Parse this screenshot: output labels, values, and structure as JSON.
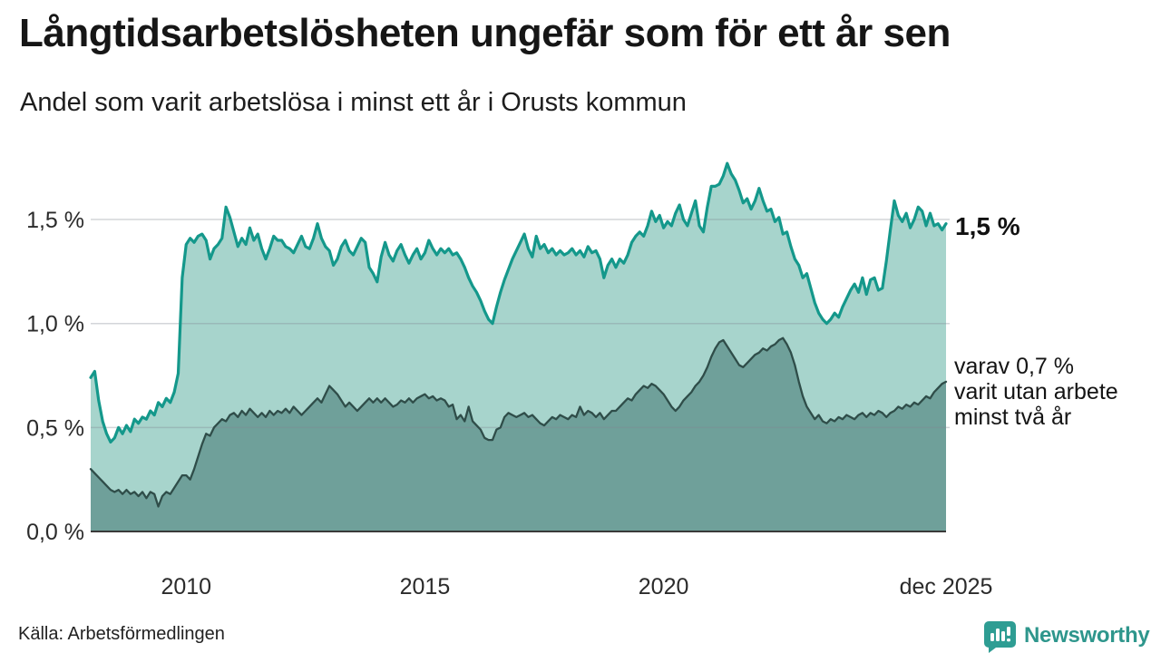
{
  "header": {
    "title": "Långtidsarbetslösheten ungefär som för ett år sen",
    "subtitle": "Andel som varit arbetslösa i minst ett år i Orusts kommun"
  },
  "annotations": {
    "series1_end_label": "1,5 %",
    "series2_end_line1": "varav 0,7 %",
    "series2_end_line2": "varit utan arbete",
    "series2_end_line3": "minst två år"
  },
  "footer": {
    "source": "Källa: Arbetsförmedlingen",
    "brand": "Newsworthy"
  },
  "colors": {
    "series1_line": "#14988b",
    "series1_fill": "#a7d4cc",
    "series2_line": "#2f4d49",
    "series2_fill": "#6fa09a",
    "gridline": "rgba(130,135,145,0.35)",
    "baseline": "#3a3a3a",
    "brand_teal": "#2e968c"
  },
  "chart_data": {
    "type": "area",
    "title": "Långtidsarbetslösheten ungefär som för ett år sen",
    "subtitle": "Andel som varit arbetslösa i minst ett år i Orusts kommun",
    "source": "Källa: Arbetsförmedlingen",
    "x_start": "2008-01",
    "x_end": "2025-12",
    "frequency": "monthly",
    "unit": "percent",
    "ylim": [
      0,
      1.85
    ],
    "grid": "horizontal",
    "y_ticks": [
      {
        "label": "0,0 %",
        "value": 0
      },
      {
        "label": "0,5 %",
        "value": 0.5
      },
      {
        "label": "1,0 %",
        "value": 1.0
      },
      {
        "label": "1,5 %",
        "value": 1.5
      }
    ],
    "x_ticks": [
      {
        "label": "2010",
        "index": 24
      },
      {
        "label": "2015",
        "index": 84
      },
      {
        "label": "2020",
        "index": 144
      },
      {
        "label": "dec 2025",
        "index": 215
      }
    ],
    "series": [
      {
        "name": "Andel arbetslösa minst ett år",
        "end_label": "1,5 %",
        "line_color": "#14988b",
        "fill_color": "#a7d4cc",
        "values": [
          0.74,
          0.77,
          0.63,
          0.53,
          0.47,
          0.43,
          0.45,
          0.5,
          0.47,
          0.51,
          0.48,
          0.54,
          0.52,
          0.55,
          0.54,
          0.58,
          0.56,
          0.62,
          0.6,
          0.64,
          0.62,
          0.67,
          0.76,
          1.22,
          1.38,
          1.41,
          1.39,
          1.42,
          1.43,
          1.4,
          1.31,
          1.36,
          1.38,
          1.41,
          1.56,
          1.51,
          1.44,
          1.37,
          1.41,
          1.38,
          1.46,
          1.4,
          1.43,
          1.36,
          1.31,
          1.36,
          1.42,
          1.4,
          1.4,
          1.37,
          1.36,
          1.34,
          1.38,
          1.42,
          1.37,
          1.36,
          1.41,
          1.48,
          1.41,
          1.37,
          1.35,
          1.28,
          1.31,
          1.37,
          1.4,
          1.35,
          1.33,
          1.37,
          1.41,
          1.39,
          1.27,
          1.24,
          1.2,
          1.32,
          1.39,
          1.33,
          1.3,
          1.35,
          1.38,
          1.33,
          1.29,
          1.33,
          1.36,
          1.31,
          1.34,
          1.4,
          1.36,
          1.33,
          1.36,
          1.34,
          1.36,
          1.33,
          1.34,
          1.31,
          1.27,
          1.22,
          1.18,
          1.15,
          1.11,
          1.06,
          1.02,
          1.0,
          1.08,
          1.15,
          1.21,
          1.26,
          1.31,
          1.35,
          1.39,
          1.43,
          1.36,
          1.32,
          1.42,
          1.36,
          1.38,
          1.34,
          1.36,
          1.33,
          1.35,
          1.33,
          1.34,
          1.36,
          1.33,
          1.35,
          1.32,
          1.37,
          1.34,
          1.35,
          1.31,
          1.22,
          1.28,
          1.31,
          1.27,
          1.31,
          1.29,
          1.33,
          1.39,
          1.42,
          1.44,
          1.42,
          1.47,
          1.54,
          1.49,
          1.52,
          1.46,
          1.49,
          1.47,
          1.53,
          1.57,
          1.5,
          1.47,
          1.53,
          1.59,
          1.47,
          1.44,
          1.56,
          1.66,
          1.66,
          1.67,
          1.71,
          1.77,
          1.72,
          1.69,
          1.64,
          1.58,
          1.6,
          1.55,
          1.59,
          1.65,
          1.59,
          1.54,
          1.55,
          1.49,
          1.51,
          1.43,
          1.44,
          1.37,
          1.31,
          1.28,
          1.22,
          1.24,
          1.17,
          1.1,
          1.05,
          1.02,
          1.0,
          1.02,
          1.05,
          1.03,
          1.08,
          1.12,
          1.16,
          1.19,
          1.15,
          1.22,
          1.14,
          1.21,
          1.22,
          1.16,
          1.17,
          1.3,
          1.45,
          1.59,
          1.52,
          1.49,
          1.53,
          1.46,
          1.5,
          1.56,
          1.54,
          1.47,
          1.53,
          1.47,
          1.48,
          1.45,
          1.48
        ]
      },
      {
        "name": "varav utan arbete minst två år",
        "end_label": "varav 0,7 % varit utan arbete minst två år",
        "line_color": "#2f4d49",
        "fill_color": "#6fa09a",
        "values": [
          0.3,
          0.28,
          0.26,
          0.24,
          0.22,
          0.2,
          0.19,
          0.2,
          0.18,
          0.2,
          0.18,
          0.19,
          0.17,
          0.19,
          0.16,
          0.19,
          0.18,
          0.12,
          0.17,
          0.19,
          0.18,
          0.21,
          0.24,
          0.27,
          0.27,
          0.25,
          0.3,
          0.36,
          0.42,
          0.47,
          0.46,
          0.5,
          0.52,
          0.54,
          0.53,
          0.56,
          0.57,
          0.55,
          0.58,
          0.56,
          0.59,
          0.57,
          0.55,
          0.57,
          0.55,
          0.58,
          0.56,
          0.58,
          0.57,
          0.59,
          0.57,
          0.6,
          0.58,
          0.56,
          0.58,
          0.6,
          0.62,
          0.64,
          0.62,
          0.66,
          0.7,
          0.68,
          0.66,
          0.63,
          0.6,
          0.62,
          0.6,
          0.58,
          0.6,
          0.62,
          0.64,
          0.62,
          0.64,
          0.62,
          0.64,
          0.62,
          0.6,
          0.61,
          0.63,
          0.62,
          0.64,
          0.62,
          0.64,
          0.65,
          0.66,
          0.64,
          0.65,
          0.63,
          0.64,
          0.63,
          0.6,
          0.61,
          0.54,
          0.56,
          0.53,
          0.6,
          0.53,
          0.51,
          0.49,
          0.45,
          0.44,
          0.44,
          0.49,
          0.5,
          0.55,
          0.57,
          0.56,
          0.55,
          0.56,
          0.57,
          0.55,
          0.56,
          0.54,
          0.52,
          0.51,
          0.53,
          0.55,
          0.54,
          0.56,
          0.55,
          0.54,
          0.56,
          0.55,
          0.6,
          0.56,
          0.58,
          0.57,
          0.55,
          0.57,
          0.54,
          0.56,
          0.58,
          0.58,
          0.6,
          0.62,
          0.64,
          0.63,
          0.66,
          0.68,
          0.7,
          0.69,
          0.71,
          0.7,
          0.68,
          0.66,
          0.63,
          0.6,
          0.58,
          0.6,
          0.63,
          0.65,
          0.67,
          0.7,
          0.72,
          0.75,
          0.79,
          0.84,
          0.88,
          0.91,
          0.92,
          0.89,
          0.86,
          0.83,
          0.8,
          0.79,
          0.81,
          0.83,
          0.85,
          0.86,
          0.88,
          0.87,
          0.89,
          0.9,
          0.92,
          0.93,
          0.9,
          0.86,
          0.8,
          0.72,
          0.65,
          0.6,
          0.57,
          0.54,
          0.56,
          0.53,
          0.52,
          0.54,
          0.53,
          0.55,
          0.54,
          0.56,
          0.55,
          0.54,
          0.56,
          0.57,
          0.55,
          0.57,
          0.56,
          0.58,
          0.57,
          0.55,
          0.57,
          0.58,
          0.6,
          0.59,
          0.61,
          0.6,
          0.62,
          0.61,
          0.63,
          0.65,
          0.64,
          0.67,
          0.69,
          0.71,
          0.72
        ]
      }
    ]
  }
}
